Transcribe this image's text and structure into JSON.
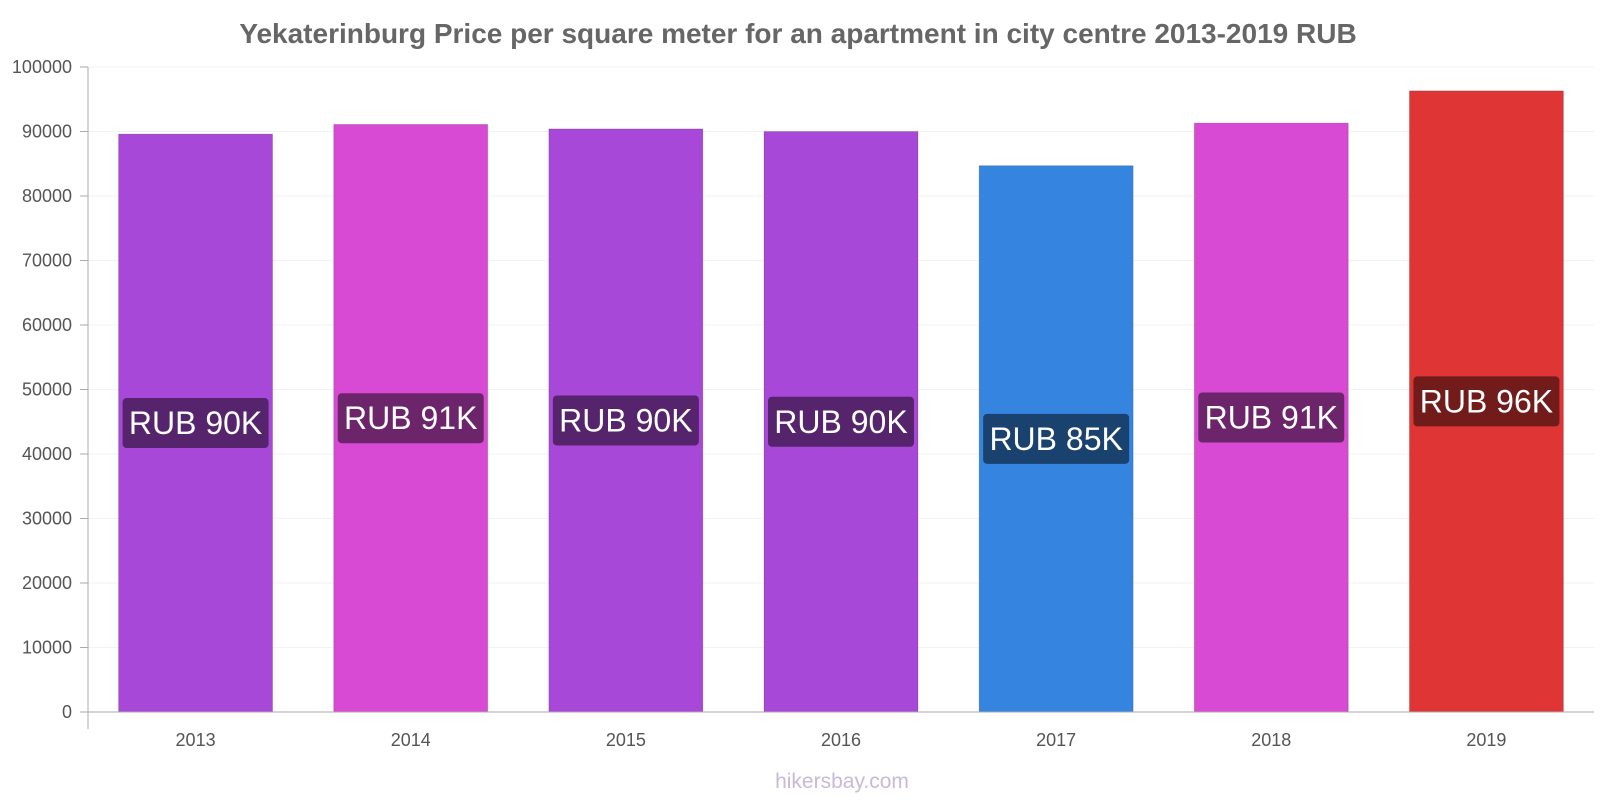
{
  "chart_data": {
    "type": "bar",
    "title": "Yekaterinburg Price per square meter for an apartment in city centre 2013-2019 RUB",
    "xlabel": "",
    "ylabel": "",
    "categories": [
      "2013",
      "2014",
      "2015",
      "2016",
      "2017",
      "2018",
      "2019"
    ],
    "values": [
      89600,
      91100,
      90400,
      90000,
      84700,
      91300,
      96300
    ],
    "data_labels": [
      "RUB 90K",
      "RUB 91K",
      "RUB 90K",
      "RUB 90K",
      "RUB 85K",
      "RUB 91K",
      "RUB 96K"
    ],
    "bar_colors": [
      "#a848d8",
      "#d84ad4",
      "#a848d8",
      "#a848d8",
      "#3584e0",
      "#d84ad4",
      "#e03535"
    ],
    "label_bg_colors": [
      "#55246c",
      "#6c256a",
      "#55246c",
      "#55246c",
      "#1a426f",
      "#6c256a",
      "#711b1b"
    ],
    "ylim": [
      0,
      100000
    ],
    "yticks": [
      "0",
      "10000",
      "20000",
      "30000",
      "40000",
      "50000",
      "60000",
      "70000",
      "80000",
      "90000",
      "100000"
    ],
    "grid": true,
    "legend": "none"
  },
  "watermark": "hikersbay.com"
}
